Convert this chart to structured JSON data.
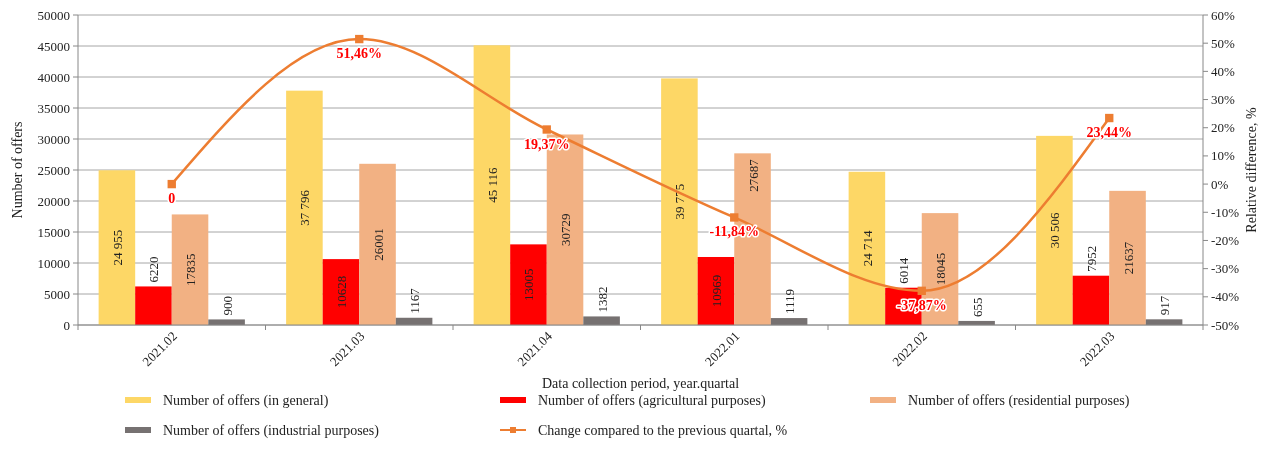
{
  "chart_data": {
    "type": "bar",
    "categories": [
      "2021.02",
      "2021.03",
      "2021.04",
      "2022.01",
      "2022.02",
      "2022.03"
    ],
    "xlabel": "Data collection period, year.quartal",
    "ylabel": "Number of offers",
    "y2label": "Relative difference, %",
    "ylim": [
      0,
      50000
    ],
    "yticks": [
      0,
      5000,
      10000,
      15000,
      20000,
      25000,
      30000,
      35000,
      40000,
      45000,
      50000
    ],
    "y2lim": [
      -50,
      60
    ],
    "y2ticks": [
      {
        "value": -50,
        "label": "-50%"
      },
      {
        "value": -40,
        "label": "-40%"
      },
      {
        "value": -30,
        "label": "-30%"
      },
      {
        "value": -20,
        "label": "-20%"
      },
      {
        "value": -10,
        "label": "-10%"
      },
      {
        "value": 0,
        "label": "0%"
      },
      {
        "value": 10,
        "label": "10%"
      },
      {
        "value": 20,
        "label": "20%"
      },
      {
        "value": 30,
        "label": "30%"
      },
      {
        "value": 40,
        "label": "40%"
      },
      {
        "value": 50,
        "label": "50%"
      },
      {
        "value": 60,
        "label": "60%"
      }
    ],
    "grid": "y",
    "legend": "bottom",
    "series": [
      {
        "name": "Number of offers (in general)",
        "color": "#fdd766",
        "values": [
          24955,
          37796,
          45116,
          39775,
          24714,
          30506
        ],
        "value_labels": [
          "24 955",
          "37 796",
          "45 116",
          "39 775",
          "24 714",
          "30 506"
        ]
      },
      {
        "name": "Number of offers (agricultural purposes)",
        "color": "#ff0000",
        "values": [
          6220,
          10628,
          13005,
          10969,
          6014,
          7952
        ],
        "value_labels": [
          "6220",
          "10628",
          "13005",
          "10969",
          "6014",
          "7952"
        ]
      },
      {
        "name": "Number of offers (residential purposes)",
        "color": "#f2b183",
        "values": [
          17835,
          26001,
          30729,
          27687,
          18045,
          21637
        ],
        "value_labels": [
          "17835",
          "26001",
          "30729",
          "27687",
          "18045",
          "21637"
        ]
      },
      {
        "name": "Number of offers (industrial purposes)",
        "color": "#767171",
        "values": [
          900,
          1167,
          1382,
          1119,
          655,
          917
        ],
        "value_labels": [
          "900",
          "1167",
          "1382",
          "1119",
          "655",
          "917"
        ]
      },
      {
        "name": "Change compared to the previous quartal, %",
        "type": "line",
        "axis": "y2",
        "marker": "square",
        "color": "#ed7d31",
        "values": [
          0,
          51.46,
          19.37,
          -11.84,
          -37.87,
          23.44
        ],
        "value_labels": [
          "0",
          "51,46%",
          "19,37%",
          "-11,84%",
          "-37,87%",
          "23,44%"
        ]
      }
    ]
  }
}
